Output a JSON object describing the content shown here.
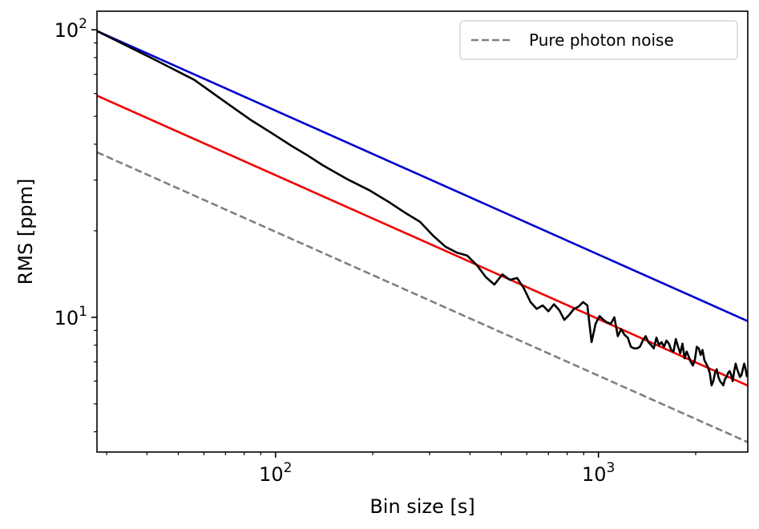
{
  "chart_data": {
    "type": "line",
    "title": "",
    "xlabel": "Bin size [s]",
    "ylabel": "RMS [ppm]",
    "xscale": "log",
    "yscale": "log",
    "xlim": [
      28,
      2900
    ],
    "ylim": [
      3.4,
      116
    ],
    "grid": false,
    "legend_position": "top-right",
    "x_ticks": [
      {
        "value": 100,
        "base": "10",
        "exp": "2"
      },
      {
        "value": 1000,
        "base": "10",
        "exp": "3"
      }
    ],
    "y_ticks": [
      {
        "value": 10,
        "base": "10",
        "exp": "1"
      },
      {
        "value": 100,
        "base": "10",
        "exp": "2"
      }
    ],
    "series": [
      {
        "name": "Pure photon noise",
        "in_legend": true,
        "color": "#808080",
        "dash": "dashed",
        "x": [
          28,
          2900
        ],
        "y": [
          37.5,
          3.68
        ]
      },
      {
        "name": "blue-line",
        "in_legend": false,
        "color": "#0000cc",
        "dash": "solid",
        "x": [
          28,
          2900
        ],
        "y": [
          99,
          9.7
        ]
      },
      {
        "name": "red-line",
        "in_legend": false,
        "color": "#ee0000",
        "dash": "solid",
        "x": [
          28,
          2900
        ],
        "y": [
          59,
          5.79
        ]
      },
      {
        "name": "measured-rms",
        "in_legend": false,
        "color": "#000000",
        "dash": "solid",
        "x": [
          28,
          42,
          56,
          70,
          84,
          98,
          112,
          126,
          140,
          154,
          168,
          196,
          224,
          252,
          280,
          308,
          336,
          364,
          392,
          420,
          448,
          476,
          504,
          532,
          560,
          588,
          616,
          644,
          672,
          700,
          728,
          756,
          784,
          812,
          840,
          868,
          896,
          924,
          952,
          980,
          1008,
          1036,
          1064,
          1092,
          1120,
          1148,
          1176,
          1204,
          1232,
          1260,
          1288,
          1316,
          1344,
          1372,
          1400,
          1428,
          1456,
          1484,
          1512,
          1540,
          1568,
          1596,
          1624,
          1652,
          1680,
          1708,
          1736,
          1764,
          1792,
          1820,
          1848,
          1876,
          1904,
          1932,
          1960,
          1988,
          2016,
          2044,
          2072,
          2100,
          2128,
          2156,
          2184,
          2212,
          2240,
          2268,
          2296,
          2324,
          2352,
          2380,
          2408,
          2436,
          2464,
          2492,
          2520,
          2548,
          2576,
          2604,
          2632,
          2660,
          2688,
          2716,
          2744,
          2772,
          2800,
          2828,
          2856,
          2884
        ],
        "y": [
          99,
          79,
          67,
          56,
          48.5,
          43.5,
          39.5,
          36.5,
          33.8,
          31.8,
          30.1,
          27.6,
          25.2,
          23.1,
          21.5,
          19.2,
          17.6,
          16.8,
          16.4,
          15.2,
          13.8,
          13.0,
          14.1,
          13.5,
          13.7,
          12.6,
          11.3,
          10.7,
          11.0,
          10.5,
          11.1,
          10.6,
          9.8,
          10.2,
          10.7,
          10.9,
          11.3,
          11.0,
          8.2,
          9.5,
          10.1,
          9.8,
          9.6,
          9.5,
          10.0,
          8.6,
          9.1,
          8.7,
          8.5,
          7.9,
          7.8,
          7.8,
          7.9,
          8.3,
          8.6,
          8.2,
          8.0,
          7.8,
          8.5,
          8.0,
          8.2,
          7.9,
          8.3,
          8.1,
          7.7,
          7.6,
          8.4,
          7.9,
          7.5,
          8.1,
          7.2,
          7.6,
          7.3,
          7.0,
          6.8,
          7.1,
          7.9,
          7.8,
          7.4,
          7.7,
          7.1,
          6.9,
          6.7,
          6.4,
          5.8,
          6.0,
          6.4,
          6.6,
          6.2,
          6.0,
          5.9,
          5.8,
          6.1,
          6.2,
          6.4,
          6.5,
          6.3,
          6.0,
          6.5,
          6.9,
          6.6,
          6.4,
          6.2,
          6.3,
          6.6,
          6.9,
          6.6,
          6.2
        ]
      }
    ]
  }
}
